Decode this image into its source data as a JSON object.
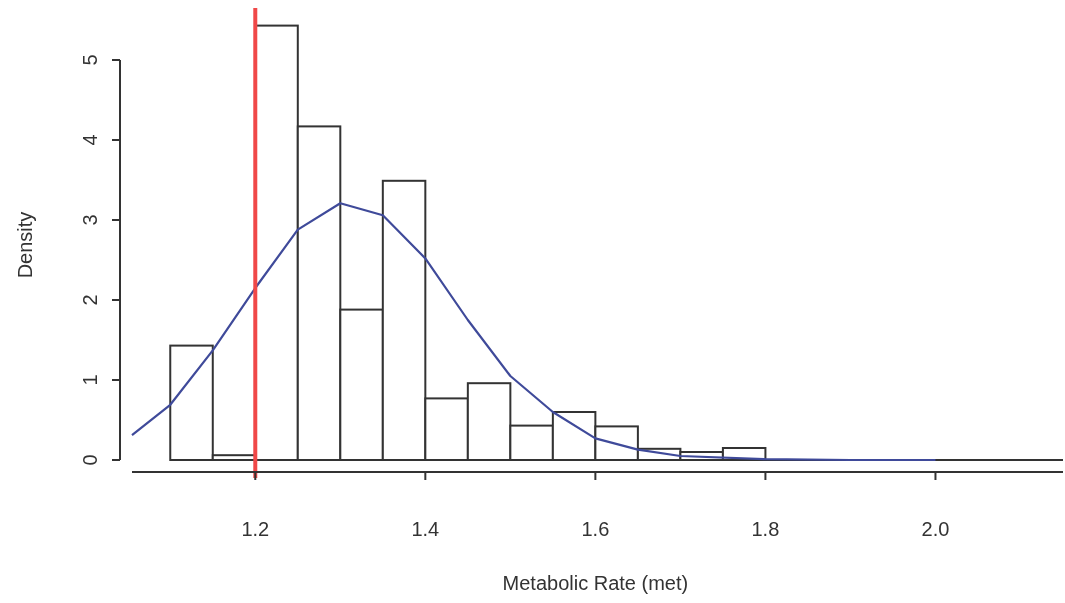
{
  "chart_data": {
    "type": "histogram",
    "xlabel": "Metabolic Rate (met)",
    "ylabel": "Density",
    "bins": [
      1.1,
      1.15,
      1.2,
      1.25,
      1.3,
      1.35,
      1.4,
      1.45,
      1.5,
      1.55,
      1.6,
      1.65,
      1.7,
      1.75,
      1.8
    ],
    "values": [
      1.43,
      0.06,
      5.43,
      4.17,
      1.88,
      3.49,
      0.77,
      0.96,
      0.43,
      0.6,
      0.42,
      0.14,
      0.1,
      0.15
    ],
    "color": "#ffffff",
    "series": [
      {
        "type": "line",
        "color": "#3f4a9a",
        "x": [
          1.055,
          1.1,
          1.15,
          1.2,
          1.25,
          1.3,
          1.35,
          1.4,
          1.45,
          1.5,
          1.55,
          1.6,
          1.65,
          1.7,
          1.8,
          1.9,
          2.0
        ],
        "values": [
          0.31,
          0.69,
          1.37,
          2.15,
          2.88,
          3.21,
          3.06,
          2.52,
          1.75,
          1.05,
          0.6,
          0.27,
          0.13,
          0.05,
          0.01,
          0,
          0
        ]
      }
    ],
    "ref_lines": [
      {
        "axis": "x",
        "value": 1.2,
        "color": "#f04848"
      }
    ],
    "xlim": [
      1.055,
      2.15
    ],
    "ylim": [
      0,
      5.65
    ],
    "xticks": [
      {
        "value": 1.2,
        "label": "1.2"
      },
      {
        "value": 1.4,
        "label": "1.4"
      },
      {
        "value": 1.6,
        "label": "1.6"
      },
      {
        "value": 1.8,
        "label": "1.8"
      },
      {
        "value": 2.0,
        "label": "2.0"
      }
    ],
    "yticks": [
      0,
      1,
      2,
      3,
      4,
      5
    ],
    "grid": false
  }
}
